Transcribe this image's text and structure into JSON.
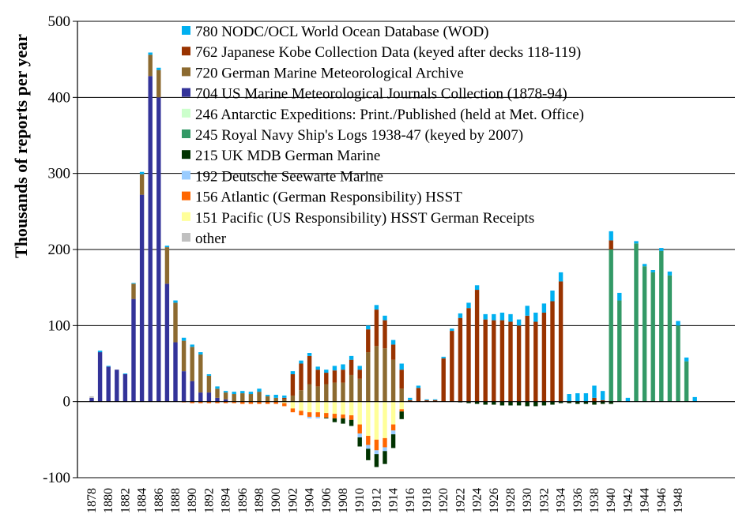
{
  "chart_data": {
    "type": "bar",
    "stacked": true,
    "ylabel": "Thousands of reports per year",
    "xlabel": "",
    "ylim": [
      -100,
      500
    ],
    "yticks": [
      -100,
      0,
      100,
      200,
      300,
      400,
      500
    ],
    "grid": "horizontal",
    "legend_position": "top-center",
    "year_range": [
      1878,
      1949
    ],
    "x_tick_labels": [
      "1878",
      "1880",
      "1882",
      "1884",
      "1886",
      "1888",
      "1890",
      "1892",
      "1894",
      "1896",
      "1898",
      "1900",
      "1902",
      "1904",
      "1906",
      "1908",
      "1910",
      "1912",
      "1914",
      "1916",
      "1918",
      "1920",
      "1922",
      "1924",
      "1926",
      "1928",
      "1930",
      "1932",
      "1934",
      "1936",
      "1938",
      "1940",
      "1942",
      "1944",
      "1946",
      "1948"
    ],
    "legend": [
      {
        "key": "s780",
        "code": "780",
        "label": "NODC/OCL World Ocean Database (WOD)",
        "color": "#00b0f0"
      },
      {
        "key": "s762",
        "code": "762",
        "label": "Japanese Kobe Collection Data (keyed after decks 118-119)",
        "color": "#993300"
      },
      {
        "key": "s720",
        "code": "720",
        "label": "German Marine Meteorological Archive",
        "color": "#8c6a30"
      },
      {
        "key": "s704",
        "code": "704",
        "label": "US Marine Meteorological Journals Collection (1878-94)",
        "color": "#333399"
      },
      {
        "key": "s246",
        "code": "246",
        "label": "Antarctic Expeditions: Print./Published (held at Met. Office)",
        "color": "#ccffcc"
      },
      {
        "key": "s245",
        "code": "245",
        "label": "Royal Navy Ship's Logs 1938-47 (keyed by 2007)",
        "color": "#339966"
      },
      {
        "key": "s215",
        "code": "215",
        "label": "UK MDB German Marine",
        "color": "#003300"
      },
      {
        "key": "s192",
        "code": "192",
        "label": "Deutsche Seewarte Marine",
        "color": "#99ccff"
      },
      {
        "key": "s156",
        "code": "156",
        "label": "Atlantic (German Responsibility) HSST",
        "color": "#ff6600"
      },
      {
        "key": "s151",
        "code": "151",
        "label": "Pacific (US Responsibility) HSST German Receipts",
        "color": "#ffff99"
      },
      {
        "key": "other",
        "code": "",
        "label": "other",
        "color": "#c0c0c0"
      }
    ],
    "positive_order": [
      "s704",
      "s245",
      "s720",
      "s762",
      "s780",
      "other"
    ],
    "negative_order": [
      "s151",
      "s156",
      "s192",
      "s246",
      "s215"
    ],
    "data": [
      {
        "year": 1878,
        "s704": 5,
        "other": 2
      },
      {
        "year": 1879,
        "s704": 65,
        "s780": 2
      },
      {
        "year": 1880,
        "s704": 46,
        "s780": 1
      },
      {
        "year": 1881,
        "s704": 42
      },
      {
        "year": 1882,
        "s704": 36,
        "s780": 1
      },
      {
        "year": 1883,
        "s704": 135,
        "s720": 20,
        "s780": 1
      },
      {
        "year": 1884,
        "s704": 272,
        "s720": 27,
        "s780": 3
      },
      {
        "year": 1885,
        "s704": 428,
        "s720": 28,
        "s780": 3
      },
      {
        "year": 1886,
        "s704": 400,
        "s720": 36,
        "s780": 3
      },
      {
        "year": 1887,
        "s704": 155,
        "s720": 48,
        "s780": 2
      },
      {
        "year": 1888,
        "s704": 78,
        "s720": 52,
        "s780": 3
      },
      {
        "year": 1889,
        "s704": 40,
        "s720": 40,
        "s780": 4,
        "s156": -1
      },
      {
        "year": 1890,
        "s704": 27,
        "s720": 45,
        "s780": 3,
        "s156": -2
      },
      {
        "year": 1891,
        "s704": 12,
        "s720": 50,
        "s780": 3,
        "s156": -2
      },
      {
        "year": 1892,
        "s704": 12,
        "s720": 22,
        "s780": 2,
        "s156": -2
      },
      {
        "year": 1893,
        "s704": 5,
        "s720": 12,
        "s780": 3,
        "s156": -2
      },
      {
        "year": 1894,
        "s704": 3,
        "s720": 9,
        "s780": 2,
        "s156": -2
      },
      {
        "year": 1895,
        "s720": 10,
        "s780": 3,
        "s156": -2
      },
      {
        "year": 1896,
        "s720": 11,
        "s780": 3,
        "s156": -3
      },
      {
        "year": 1897,
        "s720": 10,
        "s780": 3,
        "s156": -3
      },
      {
        "year": 1898,
        "s720": 13,
        "s780": 4,
        "s156": -3
      },
      {
        "year": 1899,
        "s720": 7,
        "s780": 2,
        "s156": -3
      },
      {
        "year": 1900,
        "s720": 5,
        "s780": 4,
        "s156": -3
      },
      {
        "year": 1901,
        "s762": 2,
        "s720": 3,
        "s780": 3,
        "s151": -2,
        "s156": -4
      },
      {
        "year": 1902,
        "s762": 28,
        "s720": 8,
        "s780": 4,
        "s151": -9,
        "s156": -5
      },
      {
        "year": 1903,
        "s762": 35,
        "s720": 15,
        "s780": 4,
        "s151": -12,
        "s156": -6
      },
      {
        "year": 1904,
        "s762": 37,
        "s720": 23,
        "s780": 4,
        "s151": -14,
        "s156": -6,
        "s192": -2
      },
      {
        "year": 1905,
        "s762": 22,
        "s720": 20,
        "s780": 4,
        "s151": -14,
        "s156": -6,
        "s192": -2
      },
      {
        "year": 1906,
        "s762": 15,
        "s720": 23,
        "s780": 4,
        "s151": -15,
        "s156": -6,
        "s215": -1
      },
      {
        "year": 1907,
        "s762": 16,
        "s720": 25,
        "s780": 6,
        "s151": -16,
        "s156": -6,
        "s215": -5
      },
      {
        "year": 1908,
        "s762": 17,
        "s720": 25,
        "s780": 7,
        "s151": -17,
        "s156": -5,
        "s215": -7
      },
      {
        "year": 1909,
        "s762": 20,
        "s720": 35,
        "s780": 5,
        "s151": -18,
        "s156": -6,
        "s215": -8
      },
      {
        "year": 1910,
        "s762": 12,
        "s720": 30,
        "s780": 5,
        "s246": 10,
        "s151": -30,
        "s156": -12,
        "s192": -5,
        "s215": -12
      },
      {
        "year": 1911,
        "s762": 30,
        "s720": 65,
        "s780": 5,
        "s151": -45,
        "s156": -12,
        "s192": -5,
        "s215": -15
      },
      {
        "year": 1912,
        "s762": 48,
        "s720": 73,
        "s780": 6,
        "s151": -50,
        "s156": -14,
        "s192": -5,
        "s215": -17
      },
      {
        "year": 1913,
        "s762": 37,
        "s720": 70,
        "s780": 6,
        "s151": -48,
        "s156": -12,
        "s192": -5,
        "s215": -17
      },
      {
        "year": 1914,
        "s762": 20,
        "s720": 55,
        "s780": 6,
        "s151": -30,
        "s156": -8,
        "s192": -5,
        "s215": -18
      },
      {
        "year": 1915,
        "s762": 25,
        "s720": 17,
        "s780": 8,
        "s151": -10,
        "s156": -3,
        "s215": -10
      },
      {
        "year": 1916,
        "s762": 2,
        "s780": 3
      },
      {
        "year": 1917,
        "s762": 18,
        "s780": 3
      },
      {
        "year": 1918,
        "s762": 2,
        "s780": 1
      },
      {
        "year": 1919,
        "s762": 2,
        "s780": 1
      },
      {
        "year": 1920,
        "s762": 57,
        "s780": 2
      },
      {
        "year": 1921,
        "s762": 93,
        "s780": 3
      },
      {
        "year": 1922,
        "s762": 110,
        "s780": 6,
        "s215": -1
      },
      {
        "year": 1923,
        "s762": 123,
        "s780": 7,
        "s215": -2
      },
      {
        "year": 1924,
        "s762": 147,
        "s780": 6,
        "s215": -3
      },
      {
        "year": 1925,
        "s762": 108,
        "s780": 7,
        "s215": -4
      },
      {
        "year": 1926,
        "s762": 107,
        "s780": 8,
        "s215": -4
      },
      {
        "year": 1927,
        "s762": 107,
        "s780": 10,
        "s215": -5
      },
      {
        "year": 1928,
        "s762": 105,
        "s780": 10,
        "s215": -5
      },
      {
        "year": 1929,
        "s762": 100,
        "s780": 8,
        "s215": -5
      },
      {
        "year": 1930,
        "s762": 113,
        "s780": 13,
        "s215": -6
      },
      {
        "year": 1931,
        "s762": 105,
        "s780": 12,
        "s215": -6
      },
      {
        "year": 1932,
        "s762": 117,
        "s780": 12,
        "s215": -5
      },
      {
        "year": 1933,
        "s762": 132,
        "s780": 14,
        "s215": -4
      },
      {
        "year": 1934,
        "s762": 158,
        "s780": 12,
        "s215": -2
      },
      {
        "year": 1935,
        "s780": 10,
        "s215": -2
      },
      {
        "year": 1936,
        "s780": 11,
        "s215": -3
      },
      {
        "year": 1937,
        "s780": 11,
        "s215": -3
      },
      {
        "year": 1938,
        "s762": 5,
        "s780": 16,
        "s215": -4
      },
      {
        "year": 1939,
        "s762": 2,
        "s780": 12,
        "s215": -3
      },
      {
        "year": 1940,
        "s245": 200,
        "s762": 12,
        "s780": 12,
        "s215": -3
      },
      {
        "year": 1941,
        "s245": 133,
        "s780": 10
      },
      {
        "year": 1942,
        "s780": 5
      },
      {
        "year": 1943,
        "s245": 208,
        "s780": 3
      },
      {
        "year": 1944,
        "s245": 178,
        "s780": 3
      },
      {
        "year": 1945,
        "s245": 170,
        "s780": 3
      },
      {
        "year": 1946,
        "s245": 198,
        "s780": 4
      },
      {
        "year": 1947,
        "s245": 166,
        "s780": 5
      },
      {
        "year": 1948,
        "s245": 100,
        "s780": 6
      },
      {
        "year": 1949,
        "s245": 53,
        "s780": 5
      }
    ],
    "extra_bars": [
      {
        "year": 1950,
        "s780": 6
      }
    ]
  }
}
